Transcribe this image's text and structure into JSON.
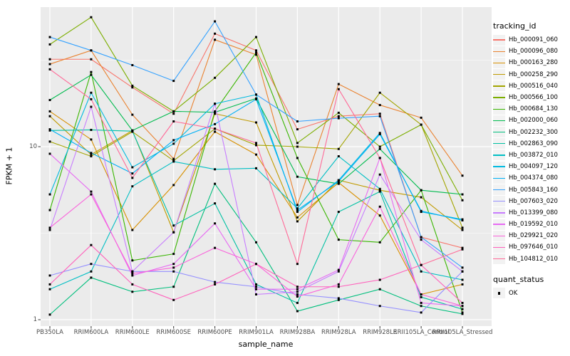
{
  "figure": {
    "panel_bg": "#EBEBEB",
    "grid_color": "#FFFFFF",
    "tick_color": "#333333",
    "tick_label_color": "#4D4D4D",
    "point_color": "#000000"
  },
  "axes": {
    "x": {
      "title": "sample_name",
      "categories": [
        "PB350LA",
        "RRIM600LA",
        "RRIM600LE",
        "RRIM600SE",
        "RRIM600PE",
        "RRIM901LA",
        "RRIM928BA",
        "RRIM928LA",
        "RRIM928LE",
        "RRII105LA_Control",
        "RRII105LA_Stressed"
      ]
    },
    "y": {
      "title": "FPKM + 1",
      "scale": "log10",
      "ticks": [
        "10",
        "1"
      ],
      "tick_values": [
        10,
        1
      ]
    }
  },
  "legend": {
    "tracking_title": "tracking_id",
    "quant_title": "quant_status",
    "quant_items": [
      {
        "label": "OK"
      }
    ]
  },
  "chart_data": {
    "type": "line",
    "title": "",
    "xlabel": "sample_name",
    "ylabel": "FPKM + 1",
    "yscale": "log10",
    "ylim": [
      0.95,
      64
    ],
    "grid": true,
    "legend_position": "right",
    "point_shape": "filled-square",
    "point_label": "OK",
    "categories": [
      "PB350LA",
      "RRIM600LA",
      "RRIM600LE",
      "RRIM600SE",
      "RRIM600PE",
      "RRIM901LA",
      "RRIM928BA",
      "RRIM928LA",
      "RRIM928LE",
      "RRII105LA_Control",
      "RRII105LA_Stressed"
    ],
    "series": [
      {
        "name": "Hb_000091_060",
        "color": "#F8766D",
        "values": [
          32,
          32,
          22,
          15.5,
          45,
          36,
          12.6,
          15,
          15.5,
          3.0,
          2.6
        ]
      },
      {
        "name": "Hb_000096_080",
        "color": "#EA8331",
        "values": [
          30,
          36,
          15.3,
          8.5,
          41.5,
          34,
          4.6,
          23,
          17.4,
          14.7,
          6.8
        ]
      },
      {
        "name": "Hb_000163_280",
        "color": "#D89000",
        "values": [
          16,
          11,
          3.3,
          6.0,
          12.2,
          9.0,
          3.9,
          6.2,
          4.0,
          1.4,
          1.6
        ]
      },
      {
        "name": "Hb_000258_290",
        "color": "#C09B00",
        "values": [
          15,
          9.0,
          12.4,
          3.2,
          15.5,
          13.8,
          3.7,
          6.4,
          5.6,
          5.1,
          3.3
        ]
      },
      {
        "name": "Hb_000516_040",
        "color": "#A3A500",
        "values": [
          10.7,
          8.8,
          12.2,
          8.3,
          12.7,
          10.2,
          10.0,
          9.7,
          20.5,
          13.4,
          3.4
        ]
      },
      {
        "name": "Hb_000566_100",
        "color": "#7CAE00",
        "values": [
          39,
          56,
          22.5,
          16,
          25,
          43,
          10.5,
          15.7,
          10,
          13.4,
          4.9
        ]
      },
      {
        "name": "Hb_000684_130",
        "color": "#39B600",
        "values": [
          4.3,
          27,
          2.2,
          2.4,
          16,
          35,
          8.6,
          2.9,
          2.8,
          5.6,
          1.1
        ]
      },
      {
        "name": "Hb_002000_060",
        "color": "#00BB4E",
        "values": [
          18.6,
          26,
          12.4,
          16,
          15.8,
          19,
          6.7,
          6.1,
          9.7,
          5.6,
          5.3
        ]
      },
      {
        "name": "Hb_002232_300",
        "color": "#00BF7D",
        "values": [
          1.07,
          1.75,
          1.45,
          1.55,
          6.1,
          2.8,
          1.12,
          1.3,
          1.5,
          1.2,
          1.08
        ]
      },
      {
        "name": "Hb_002863_090",
        "color": "#00C1A3",
        "values": [
          12.4,
          12.5,
          12.3,
          3.5,
          4.7,
          1.6,
          1.25,
          4.2,
          5.5,
          1.35,
          1.15
        ]
      },
      {
        "name": "Hb_003872_010",
        "color": "#00BFC4",
        "values": [
          1.5,
          1.9,
          5.9,
          8.2,
          7.4,
          7.5,
          4.4,
          8.8,
          5.7,
          1.9,
          1.7
        ]
      },
      {
        "name": "Hb_004097_120",
        "color": "#00BAE0",
        "values": [
          5.3,
          20.5,
          7.6,
          10.4,
          17.7,
          20,
          4.2,
          6.4,
          12,
          4.2,
          3.8
        ]
      },
      {
        "name": "Hb_004374_080",
        "color": "#00B0F6",
        "values": [
          12.6,
          9.2,
          7.0,
          10.9,
          13.5,
          18.8,
          4.3,
          6.3,
          11.8,
          4.25,
          3.75
        ]
      },
      {
        "name": "Hb_005843_160",
        "color": "#35A2FF",
        "values": [
          43,
          36,
          29.6,
          24,
          53,
          20,
          14,
          14.6,
          15,
          3.0,
          2.0
        ]
      },
      {
        "name": "Hb_007603_020",
        "color": "#9590FF",
        "values": [
          1.8,
          2.1,
          1.9,
          1.9,
          1.65,
          1.55,
          1.4,
          1.33,
          1.2,
          1.1,
          1.9
        ]
      },
      {
        "name": "Hb_013399_080",
        "color": "#C77CFF",
        "values": [
          3.3,
          17,
          1.9,
          3.2,
          17.7,
          1.4,
          1.45,
          1.9,
          6.9,
          2.9,
          1.9
        ]
      },
      {
        "name": "Hb_019592_010",
        "color": "#E76BF3",
        "values": [
          9.1,
          5.5,
          1.8,
          2.1,
          3.6,
          1.5,
          1.5,
          1.94,
          8.6,
          1.25,
          1.2
        ]
      },
      {
        "name": "Hb_029921_020",
        "color": "#FA62DB",
        "values": [
          3.4,
          5.3,
          1.85,
          2.0,
          2.6,
          2.1,
          1.36,
          1.6,
          4.5,
          1.4,
          1.2
        ]
      },
      {
        "name": "Hb_097646_010",
        "color": "#FF62BC",
        "values": [
          1.6,
          2.7,
          1.6,
          1.3,
          1.6,
          2.1,
          1.55,
          1.55,
          1.7,
          2.07,
          1.25
        ]
      },
      {
        "name": "Hb_104812_010",
        "color": "#FF6A98",
        "values": [
          28,
          18.8,
          6.6,
          14,
          12.7,
          10.5,
          2.1,
          21.5,
          8.6,
          2.07,
          2.55
        ]
      }
    ]
  }
}
